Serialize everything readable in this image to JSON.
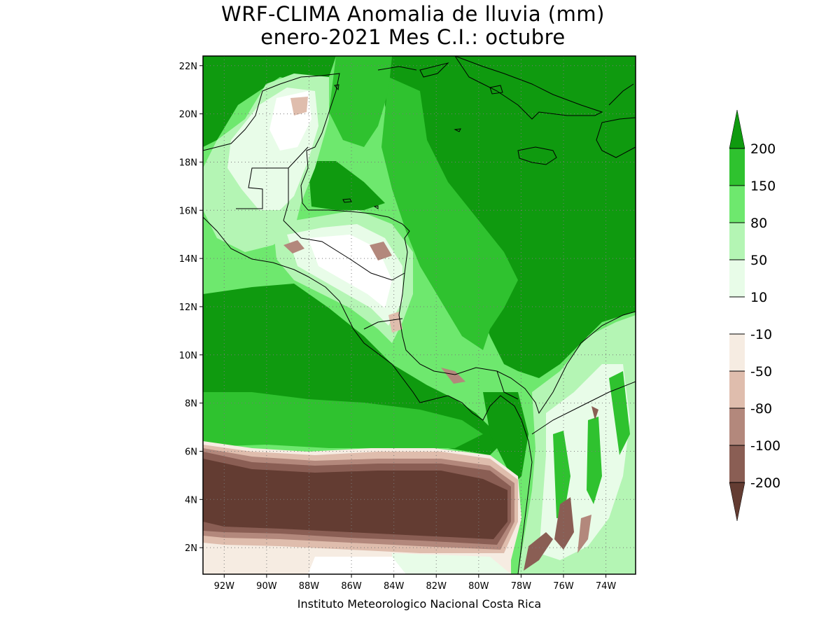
{
  "title": {
    "line1": "WRF-CLIMA Anomalia de lluvia (mm)",
    "line2": "enero-2021 Mes C.I.: octubre"
  },
  "footer": "Instituto Meteorologico Nacional Costa Rica",
  "axes": {
    "lat_labels": [
      "2N",
      "4N",
      "6N",
      "8N",
      "10N",
      "12N",
      "14N",
      "16N",
      "18N",
      "20N",
      "22N"
    ],
    "lat_values": [
      2,
      4,
      6,
      8,
      10,
      12,
      14,
      16,
      18,
      20,
      22
    ],
    "lon_labels": [
      "92W",
      "90W",
      "88W",
      "86W",
      "84W",
      "82W",
      "80W",
      "78W",
      "76W",
      "74W"
    ],
    "lon_values": [
      -92,
      -90,
      -88,
      -86,
      -84,
      -82,
      -80,
      -78,
      -76,
      -74
    ],
    "lat_range": [
      0.9,
      22.4
    ],
    "lon_range": [
      -93.0,
      -72.6
    ],
    "grid": "dotted"
  },
  "legend": {
    "labels": [
      "200",
      "150",
      "80",
      "50",
      "10",
      "-10",
      "-50",
      "-80",
      "-100",
      "-200"
    ],
    "colors": [
      "#0f9a0f",
      "#2fc22f",
      "#6ee86e",
      "#b4f5b4",
      "#e8fce8",
      "#ffffff",
      "#f6ece2",
      "#dfbdad",
      "#b3887c",
      "#8a5e54",
      "#633c32"
    ],
    "placement": "right"
  },
  "region_labels": {}
}
